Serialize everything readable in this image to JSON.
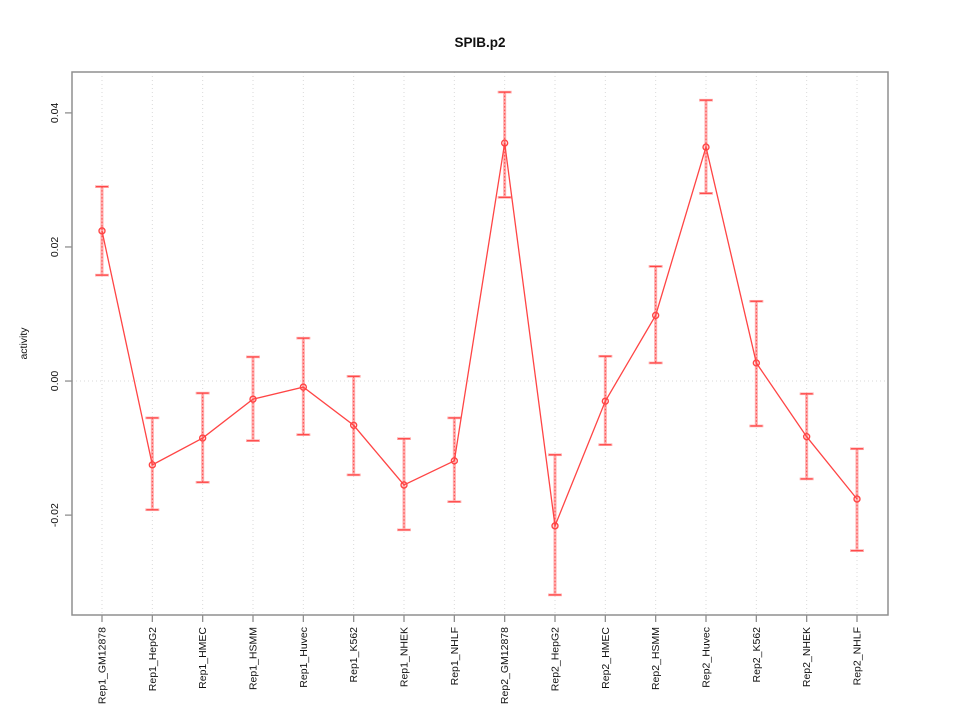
{
  "figure": {
    "title": "SPIB.p2",
    "ylabel": "activity"
  },
  "chart_data": {
    "type": "line",
    "title": "SPIB.p2",
    "xlabel": "",
    "ylabel": "activity",
    "legend": "none",
    "grid": "dotted vertical line per category; dotted horizontal line at y=0",
    "marker": "open-circle",
    "error_bars": true,
    "categories": [
      "Rep1_GM12878",
      "Rep1_HepG2",
      "Rep1_HMEC",
      "Rep1_HSMM",
      "Rep1_Huvec",
      "Rep1_K562",
      "Rep1_NHEK",
      "Rep1_NHLF",
      "Rep2_GM12878",
      "Rep2_HepG2",
      "Rep2_HMEC",
      "Rep2_HSMM",
      "Rep2_Huvec",
      "Rep2_K562",
      "Rep2_NHEK",
      "Rep2_NHLF"
    ],
    "series": [
      {
        "name": "activity",
        "values": [
          0.0224,
          -0.0125,
          -0.0085,
          -0.0027,
          -0.0009,
          -0.0066,
          -0.0155,
          -0.0119,
          0.0355,
          -0.0216,
          -0.003,
          0.0098,
          0.0349,
          0.0027,
          -0.0083,
          -0.0176
        ],
        "ci_upper": [
          0.029,
          -0.0055,
          -0.0018,
          0.0036,
          0.0064,
          0.0007,
          -0.0086,
          -0.0055,
          0.0431,
          -0.011,
          0.0037,
          0.0171,
          0.0419,
          0.0119,
          -0.0019,
          -0.0101
        ],
        "ci_lower": [
          0.0158,
          -0.0192,
          -0.0151,
          -0.0089,
          -0.008,
          -0.014,
          -0.0222,
          -0.018,
          0.0274,
          -0.0319,
          -0.0095,
          0.0027,
          0.028,
          -0.0067,
          -0.0146,
          -0.0253
        ]
      }
    ],
    "ylim": [
      -0.0349,
      0.0461
    ],
    "yticks": [
      -0.02,
      0.0,
      0.02,
      0.04
    ],
    "ytick_labels": [
      "-0.02",
      "0.00",
      "0.02",
      "0.04"
    ],
    "colors": {
      "line": "#ff4545",
      "ci_band": "#ffabab",
      "grid": "#dadada",
      "box": "#8f8f8f",
      "text": "#111111"
    }
  }
}
